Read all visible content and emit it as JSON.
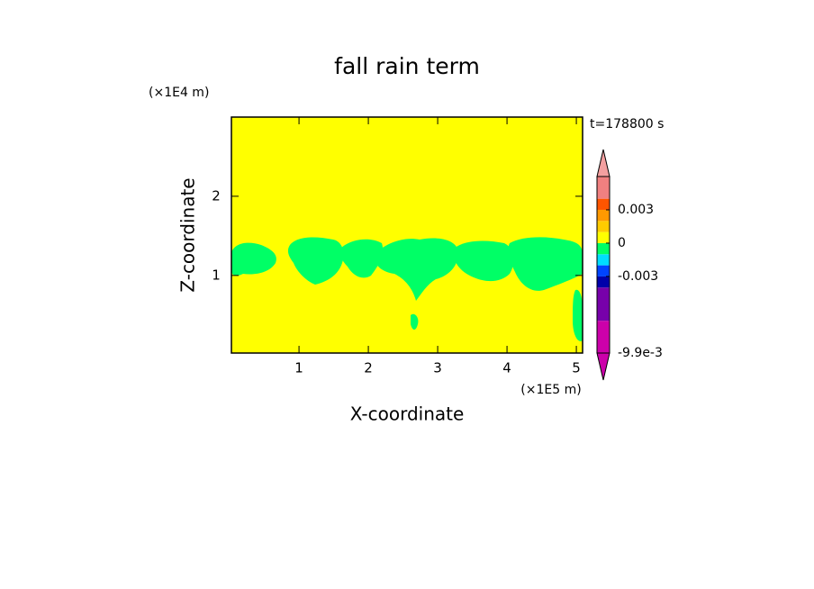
{
  "chart_data": {
    "type": "contour",
    "title": "fall rain term",
    "x_label": "X-coordinate",
    "y_label": "Z-coordinate",
    "x_unit": "(×1E5 m)",
    "y_unit": "(×1E4 m)",
    "time_label": "t=178800 s",
    "xlim": [
      0.025,
      5.09
    ],
    "ylim": [
      0.02,
      3.0
    ],
    "xticks": [
      1,
      2,
      3,
      4,
      5
    ],
    "yticks": [
      1,
      2
    ],
    "background": "#ffff00",
    "patch_color": "#00ff66",
    "colorbar": {
      "bounds": [
        -0.0099,
        -0.007,
        -0.004,
        -0.003,
        -0.002,
        -0.001,
        0,
        0.001,
        0.002,
        0.003,
        0.004,
        0.006
      ],
      "colors": [
        "#cc00aa",
        "#7700aa",
        "#0000aa",
        "#0044ff",
        "#00ddff",
        "#00ff66",
        "#ffff00",
        "#ffcc00",
        "#ff9900",
        "#ff5500",
        "#f08080"
      ],
      "under_color": "#cc00aa",
      "over_color": "#f4a0a0",
      "ticks": [
        {
          "value": -0.0099,
          "label": "-9.9e-3"
        },
        -0.003,
        0,
        0.003
      ]
    }
  }
}
